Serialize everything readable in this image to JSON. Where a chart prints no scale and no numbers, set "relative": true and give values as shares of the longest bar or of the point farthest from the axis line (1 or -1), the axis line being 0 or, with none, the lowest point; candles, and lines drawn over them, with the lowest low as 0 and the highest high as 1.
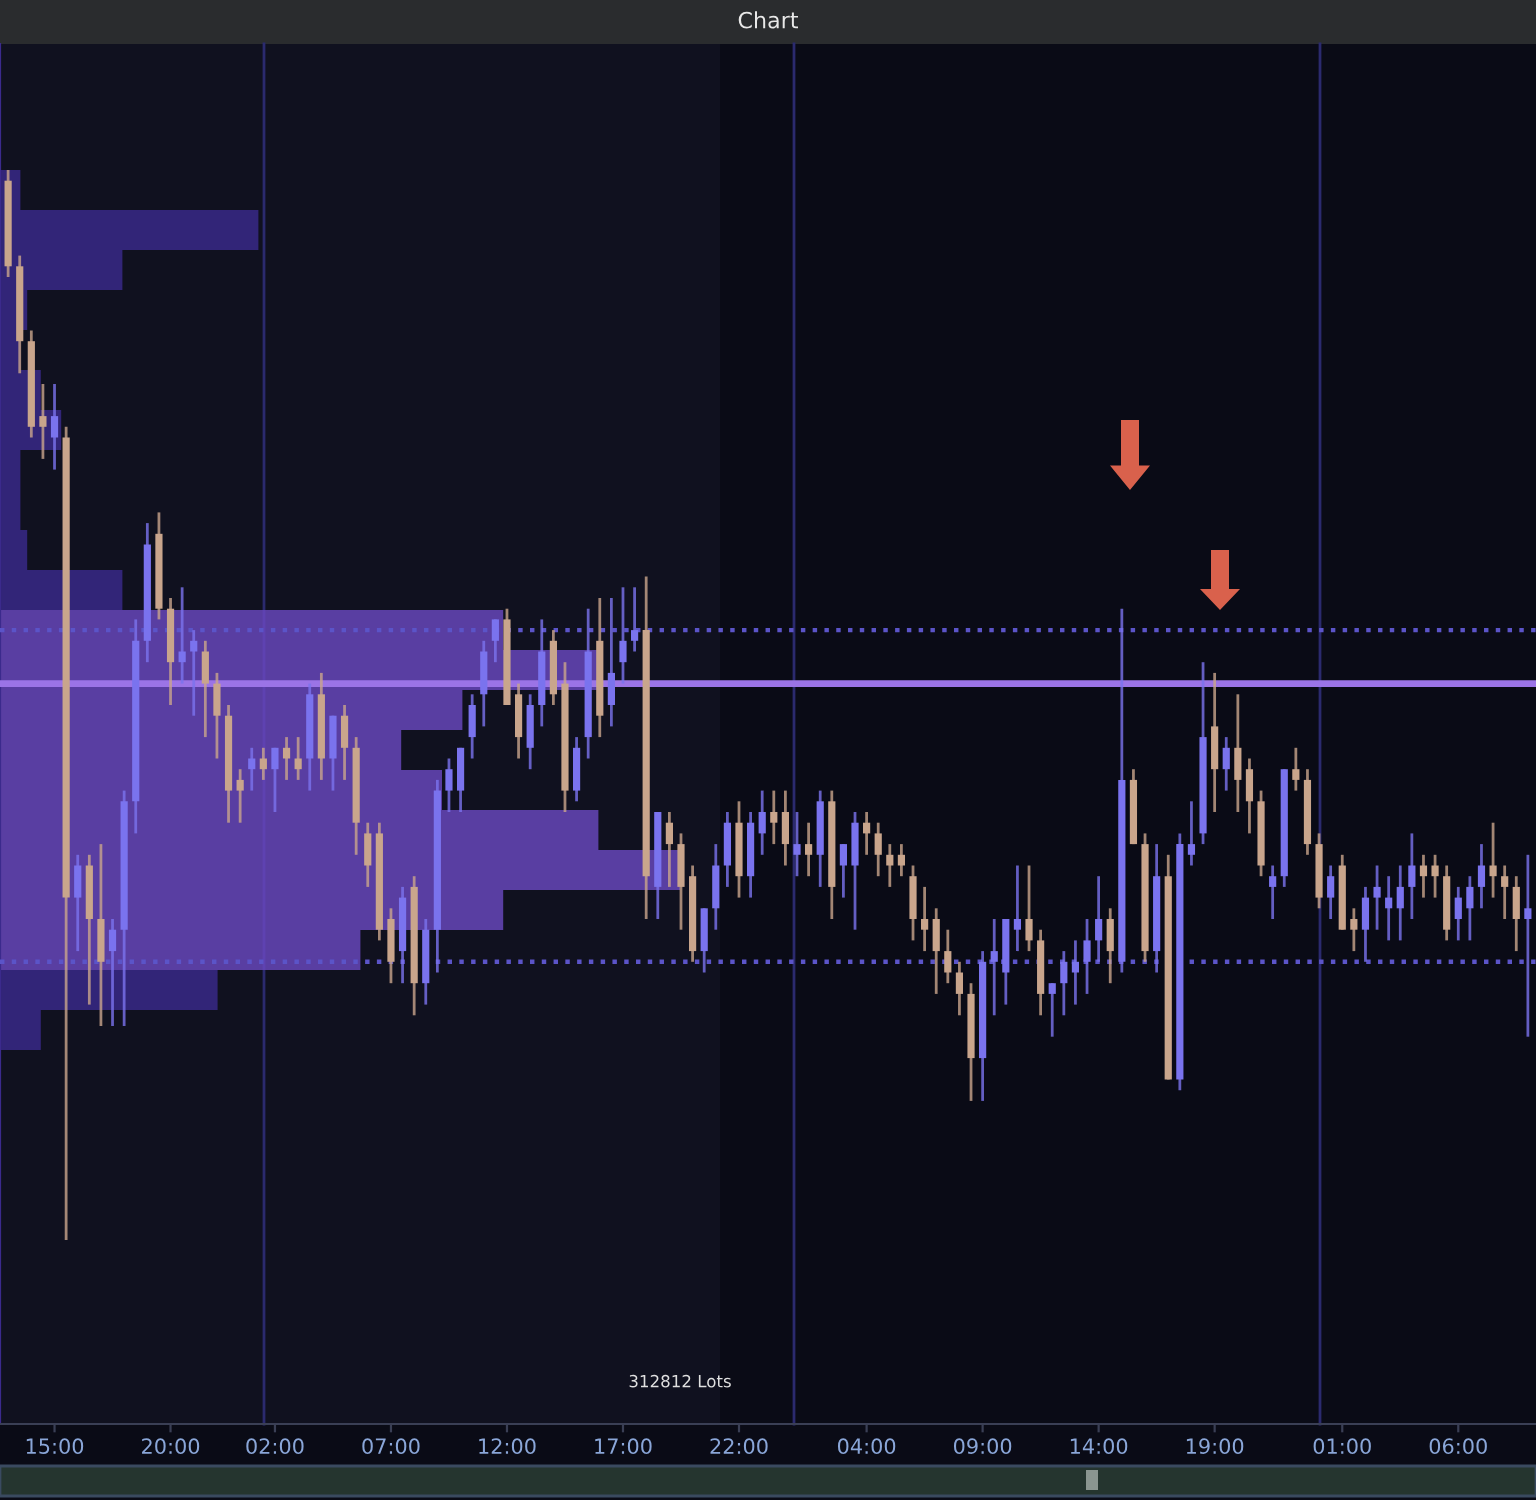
{
  "chart_data": [
    {
      "type": "candlestick",
      "title": "Chart",
      "relative": true,
      "tick_labels": "x",
      "categories": [
        null,
        null,
        null,
        null,
        "15:00",
        null,
        null,
        null,
        null,
        null,
        null,
        null,
        null,
        null,
        "20:00",
        null,
        null,
        null,
        null,
        null,
        null,
        null,
        null,
        "02:00",
        null,
        null,
        null,
        null,
        null,
        null,
        null,
        null,
        null,
        "07:00",
        null,
        null,
        null,
        null,
        null,
        null,
        null,
        null,
        null,
        "12:00",
        null,
        null,
        null,
        null,
        null,
        null,
        null,
        null,
        null,
        "17:00",
        null,
        null,
        null,
        null,
        null,
        null,
        null,
        null,
        null,
        "22:00",
        null,
        null,
        null,
        null,
        null,
        null,
        null,
        null,
        null,
        null,
        "04:00",
        null,
        null,
        null,
        null,
        null,
        null,
        null,
        null,
        null,
        "09:00",
        null,
        null,
        null,
        null,
        null,
        null,
        null,
        null,
        null,
        "14:00",
        null,
        null,
        null,
        null,
        null,
        null,
        null,
        null,
        null,
        "19:00",
        null,
        null,
        null,
        null,
        null,
        null,
        null,
        null,
        null,
        null,
        "01:00",
        null,
        null,
        null,
        null,
        null,
        null,
        null,
        null,
        null,
        "06:00",
        null,
        null,
        null,
        null,
        null,
        null
      ],
      "ohlc": [
        [
          0.99,
          1.0,
          0.9,
          0.91
        ],
        [
          0.91,
          0.92,
          0.81,
          0.84
        ],
        [
          0.84,
          0.85,
          0.75,
          0.76
        ],
        [
          0.77,
          0.8,
          0.73,
          0.76
        ],
        [
          0.75,
          0.8,
          0.72,
          0.77
        ],
        [
          0.75,
          0.76,
          0,
          0.32
        ],
        [
          0.32,
          0.36,
          0.27,
          0.35
        ],
        [
          0.35,
          0.36,
          0.22,
          0.3
        ],
        [
          0.3,
          0.37,
          0.2,
          0.26
        ],
        [
          0.27,
          0.3,
          0.2,
          0.29
        ],
        [
          0.29,
          0.42,
          0.2,
          0.41
        ],
        [
          0.41,
          0.58,
          0.38,
          0.56
        ],
        [
          0.56,
          0.67,
          0.54,
          0.65
        ],
        [
          0.66,
          0.68,
          0.58,
          0.59
        ],
        [
          0.59,
          0.6,
          0.5,
          0.54
        ],
        [
          0.54,
          0.61,
          0.52,
          0.55
        ],
        [
          0.55,
          0.57,
          0.49,
          0.56
        ],
        [
          0.55,
          0.56,
          0.47,
          0.52
        ],
        [
          0.52,
          0.53,
          0.45,
          0.49
        ],
        [
          0.49,
          0.5,
          0.39,
          0.42
        ],
        [
          0.43,
          0.44,
          0.39,
          0.42
        ],
        [
          0.44,
          0.46,
          0.42,
          0.45
        ],
        [
          0.45,
          0.46,
          0.43,
          0.44
        ],
        [
          0.44,
          0.46,
          0.4,
          0.46
        ],
        [
          0.46,
          0.47,
          0.43,
          0.45
        ],
        [
          0.45,
          0.47,
          0.43,
          0.44
        ],
        [
          0.45,
          0.52,
          0.42,
          0.51
        ],
        [
          0.51,
          0.53,
          0.43,
          0.45
        ],
        [
          0.45,
          0.49,
          0.42,
          0.49
        ],
        [
          0.49,
          0.5,
          0.43,
          0.46
        ],
        [
          0.46,
          0.47,
          0.36,
          0.39
        ],
        [
          0.38,
          0.39,
          0.33,
          0.35
        ],
        [
          0.38,
          0.39,
          0.28,
          0.29
        ],
        [
          0.3,
          0.31,
          0.24,
          0.26
        ],
        [
          0.27,
          0.33,
          0.24,
          0.32
        ],
        [
          0.33,
          0.34,
          0.21,
          0.24
        ],
        [
          0.24,
          0.3,
          0.22,
          0.29
        ],
        [
          0.29,
          0.43,
          0.25,
          0.42
        ],
        [
          0.42,
          0.45,
          0.4,
          0.44
        ],
        [
          0.42,
          0.46,
          0.4,
          0.46
        ],
        [
          0.47,
          0.51,
          0.45,
          0.5
        ],
        [
          0.51,
          0.56,
          0.48,
          0.55
        ],
        [
          0.56,
          0.58,
          0.54,
          0.58
        ],
        [
          0.58,
          0.59,
          0.5,
          0.5
        ],
        [
          0.51,
          0.52,
          0.45,
          0.47
        ],
        [
          0.46,
          0.51,
          0.44,
          0.5
        ],
        [
          0.5,
          0.58,
          0.48,
          0.55
        ],
        [
          0.56,
          0.57,
          0.5,
          0.51
        ],
        [
          0.52,
          0.54,
          0.4,
          0.42
        ],
        [
          0.42,
          0.47,
          0.41,
          0.46
        ],
        [
          0.47,
          0.59,
          0.45,
          0.55
        ],
        [
          0.56,
          0.6,
          0.47,
          0.49
        ],
        [
          0.5,
          0.6,
          0.48,
          0.53
        ],
        [
          0.54,
          0.61,
          0.52,
          0.56
        ],
        [
          0.56,
          0.61,
          0.55,
          0.57
        ],
        [
          0.57,
          0.62,
          0.3,
          0.34
        ],
        [
          0.33,
          0.4,
          0.3,
          0.4
        ],
        [
          0.39,
          0.4,
          0.33,
          0.37
        ],
        [
          0.37,
          0.38,
          0.29,
          0.33
        ],
        [
          0.34,
          0.35,
          0.26,
          0.27
        ],
        [
          0.27,
          0.31,
          0.25,
          0.31
        ],
        [
          0.31,
          0.37,
          0.29,
          0.35
        ],
        [
          0.35,
          0.4,
          0.33,
          0.39
        ],
        [
          0.39,
          0.41,
          0.32,
          0.34
        ],
        [
          0.34,
          0.4,
          0.32,
          0.39
        ],
        [
          0.38,
          0.42,
          0.36,
          0.4
        ],
        [
          0.4,
          0.42,
          0.37,
          0.39
        ],
        [
          0.4,
          0.42,
          0.35,
          0.37
        ],
        [
          0.36,
          0.4,
          0.34,
          0.37
        ],
        [
          0.37,
          0.39,
          0.34,
          0.36
        ],
        [
          0.36,
          0.42,
          0.33,
          0.41
        ],
        [
          0.41,
          0.42,
          0.3,
          0.33
        ],
        [
          0.35,
          0.37,
          0.32,
          0.37
        ],
        [
          0.35,
          0.4,
          0.29,
          0.39
        ],
        [
          0.39,
          0.4,
          0.36,
          0.38
        ],
        [
          0.38,
          0.39,
          0.34,
          0.36
        ],
        [
          0.36,
          0.37,
          0.33,
          0.35
        ],
        [
          0.36,
          0.37,
          0.34,
          0.35
        ],
        [
          0.34,
          0.35,
          0.28,
          0.3
        ],
        [
          0.3,
          0.33,
          0.27,
          0.29
        ],
        [
          0.3,
          0.31,
          0.23,
          0.27
        ],
        [
          0.27,
          0.29,
          0.24,
          0.25
        ],
        [
          0.25,
          0.26,
          0.21,
          0.23
        ],
        [
          0.23,
          0.24,
          0.13,
          0.17
        ],
        [
          0.17,
          0.27,
          0.13,
          0.26
        ],
        [
          0.26,
          0.3,
          0.21,
          0.27
        ],
        [
          0.25,
          0.3,
          0.22,
          0.3
        ],
        [
          0.29,
          0.35,
          0.27,
          0.3
        ],
        [
          0.3,
          0.35,
          0.27,
          0.28
        ],
        [
          0.28,
          0.29,
          0.21,
          0.23
        ],
        [
          0.23,
          0.24,
          0.19,
          0.24
        ],
        [
          0.24,
          0.27,
          0.21,
          0.26
        ],
        [
          0.25,
          0.28,
          0.22,
          0.26
        ],
        [
          0.26,
          0.3,
          0.23,
          0.28
        ],
        [
          0.28,
          0.34,
          0.26,
          0.3
        ],
        [
          0.3,
          0.31,
          0.24,
          0.27
        ],
        [
          0.26,
          0.59,
          0.25,
          0.43
        ],
        [
          0.43,
          0.44,
          0.37,
          0.37
        ],
        [
          0.37,
          0.38,
          0.26,
          0.27
        ],
        [
          0.27,
          0.37,
          0.25,
          0.34
        ],
        [
          0.34,
          0.36,
          0.15,
          0.15
        ],
        [
          0.15,
          0.38,
          0.14,
          0.37
        ],
        [
          0.36,
          0.41,
          0.35,
          0.37
        ],
        [
          0.38,
          0.54,
          0.37,
          0.47
        ],
        [
          0.48,
          0.53,
          0.4,
          0.44
        ],
        [
          0.44,
          0.47,
          0.42,
          0.46
        ],
        [
          0.46,
          0.51,
          0.4,
          0.43
        ],
        [
          0.44,
          0.45,
          0.38,
          0.41
        ],
        [
          0.41,
          0.42,
          0.34,
          0.35
        ],
        [
          0.33,
          0.35,
          0.3,
          0.34
        ],
        [
          0.34,
          0.44,
          0.33,
          0.44
        ],
        [
          0.44,
          0.46,
          0.42,
          0.43
        ],
        [
          0.43,
          0.44,
          0.36,
          0.37
        ],
        [
          0.37,
          0.38,
          0.31,
          0.32
        ],
        [
          0.32,
          0.35,
          0.3,
          0.34
        ],
        [
          0.35,
          0.36,
          0.29,
          0.29
        ],
        [
          0.3,
          0.31,
          0.27,
          0.29
        ],
        [
          0.29,
          0.33,
          0.26,
          0.32
        ],
        [
          0.32,
          0.35,
          0.29,
          0.33
        ],
        [
          0.31,
          0.34,
          0.28,
          0.32
        ],
        [
          0.31,
          0.35,
          0.28,
          0.33
        ],
        [
          0.33,
          0.38,
          0.3,
          0.35
        ],
        [
          0.35,
          0.36,
          0.32,
          0.34
        ],
        [
          0.35,
          0.36,
          0.32,
          0.34
        ],
        [
          0.34,
          0.35,
          0.28,
          0.29
        ],
        [
          0.3,
          0.33,
          0.28,
          0.32
        ],
        [
          0.31,
          0.34,
          0.28,
          0.33
        ],
        [
          0.33,
          0.37,
          0.31,
          0.35
        ],
        [
          0.35,
          0.39,
          0.32,
          0.34
        ],
        [
          0.34,
          0.35,
          0.3,
          0.33
        ],
        [
          0.33,
          0.34,
          0.27,
          0.3
        ],
        [
          0.3,
          0.36,
          0.19,
          0.31
        ]
      ],
      "colors": [
        "#c9a58c",
        "#c9a58c",
        "#c9a58c",
        "#c9a58c",
        "#7a73ee",
        "#c9a58c",
        "#7a73ee",
        "#c9a58c",
        "#c9a58c",
        "#7a73ee",
        "#7a73ee",
        "#7a73ee",
        "#7a73ee",
        "#c9a58c",
        "#c9a58c",
        "#7a73ee",
        "#7a73ee",
        "#c9a58c",
        "#c9a58c",
        "#c9a58c",
        "#c9a58c",
        "#7a73ee",
        "#c9a58c",
        "#7a73ee",
        "#c9a58c",
        "#c9a58c",
        "#7a73ee",
        "#c9a58c",
        "#7a73ee",
        "#c9a58c",
        "#c9a58c",
        "#c9a58c",
        "#c9a58c",
        "#c9a58c",
        "#7a73ee",
        "#c9a58c",
        "#7a73ee",
        "#7a73ee",
        "#7a73ee",
        "#7a73ee",
        "#7a73ee",
        "#7a73ee",
        "#7a73ee",
        "#c9a58c",
        "#c9a58c",
        "#7a73ee",
        "#7a73ee",
        "#c9a58c",
        "#c9a58c",
        "#7a73ee",
        "#7a73ee",
        "#c9a58c",
        "#7a73ee",
        "#7a73ee",
        "#7a73ee",
        "#c9a58c",
        "#7a73ee",
        "#c9a58c",
        "#c9a58c",
        "#c9a58c",
        "#7a73ee",
        "#7a73ee",
        "#7a73ee",
        "#c9a58c",
        "#7a73ee",
        "#7a73ee",
        "#c9a58c",
        "#c9a58c",
        "#7a73ee",
        "#c9a58c",
        "#7a73ee",
        "#c9a58c",
        "#7a73ee",
        "#7a73ee",
        "#c9a58c",
        "#c9a58c",
        "#c9a58c",
        "#c9a58c",
        "#c9a58c",
        "#c9a58c",
        "#c9a58c",
        "#c9a58c",
        "#c9a58c",
        "#c9a58c",
        "#7a73ee",
        "#7a73ee",
        "#7a73ee",
        "#7a73ee",
        "#c9a58c",
        "#c9a58c",
        "#7a73ee",
        "#7a73ee",
        "#7a73ee",
        "#7a73ee",
        "#7a73ee",
        "#c9a58c",
        "#7a73ee",
        "#c9a58c",
        "#c9a58c",
        "#7a73ee",
        "#c9a58c",
        "#7a73ee",
        "#7a73ee",
        "#7a73ee",
        "#c9a58c",
        "#7a73ee",
        "#c9a58c",
        "#c9a58c",
        "#c9a58c",
        "#7a73ee",
        "#7a73ee",
        "#c9a58c",
        "#c9a58c",
        "#c9a58c",
        "#7a73ee",
        "#c9a58c",
        "#c9a58c",
        "#7a73ee",
        "#7a73ee",
        "#7a73ee",
        "#7a73ee",
        "#7a73ee",
        "#c9a58c",
        "#c9a58c",
        "#c9a58c",
        "#7a73ee",
        "#7a73ee",
        "#7a73ee",
        "#c9a58c",
        "#c9a58c",
        "#c9a58c",
        "#7a73ee"
      ],
      "ref_lines": [
        {
          "axis": "y",
          "value": 0.57,
          "color": "#5b54c8",
          "line_style": "dotted"
        },
        {
          "axis": "y",
          "value": 0.26,
          "color": "#5b54c8",
          "line_style": "dotted"
        },
        {
          "axis": "y",
          "value": 0.52,
          "color": "#9b74e6",
          "line_style": "solid"
        }
      ],
      "annotations": [
        "312812 Lots"
      ]
    },
    {
      "type": "bar",
      "orientation": "horizontal",
      "relative": true,
      "tick_labels": false,
      "categories": [
        null,
        null,
        null,
        null,
        null,
        null,
        null,
        null,
        null,
        null,
        null,
        null,
        null,
        null,
        null,
        null,
        null,
        null,
        null,
        null,
        null,
        null
      ],
      "values": [
        0.03,
        0.38,
        0.18,
        0.04,
        0.03,
        0.06,
        0.09,
        0.03,
        0.03,
        0.04,
        0.18,
        0.74,
        0.88,
        0.68,
        0.59,
        0.65,
        0.88,
        1,
        0.74,
        0.53,
        0.32,
        0.06
      ],
      "colors": [
        "#3b2a8c",
        "#3b2a8c",
        "#3b2a8c",
        "#3b2a8c",
        "#3b2a8c",
        "#3b2a8c",
        "#3b2a8c",
        "#3b2a8c",
        "#3b2a8c",
        "#3b2a8c",
        "#3b2a8c",
        "#6a48c0",
        "#6a48c0",
        "#6a48c0",
        "#6a48c0",
        "#6a48c0",
        "#6a48c0",
        "#6a48c0",
        "#6a48c0",
        "#6a48c0",
        "#3b2a8c",
        "#3b2a8c"
      ]
    }
  ]
}
